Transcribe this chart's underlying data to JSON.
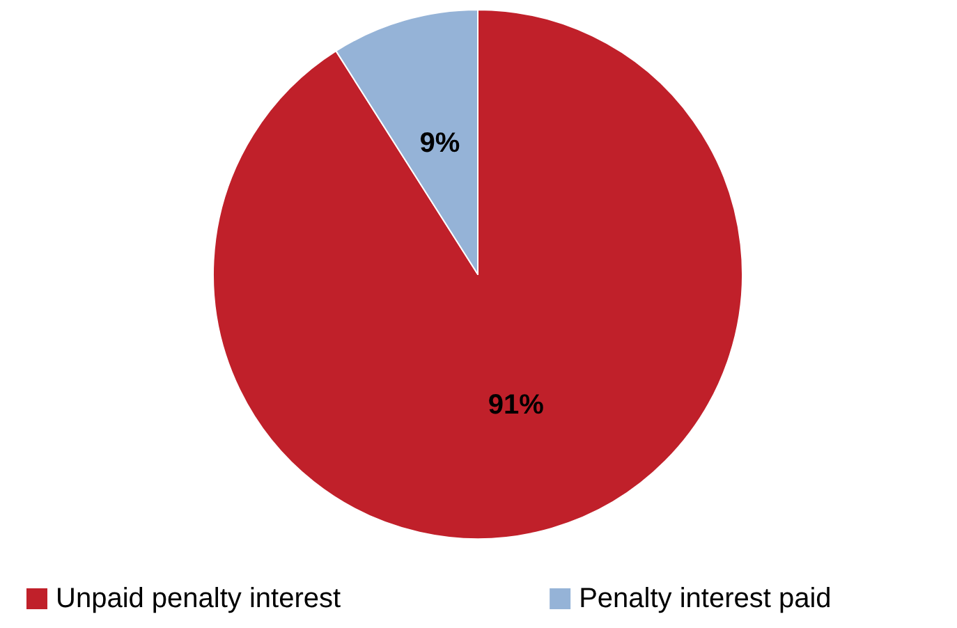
{
  "chart_data": {
    "type": "pie",
    "categories": [
      "Unpaid penalty interest",
      "Penalty interest paid"
    ],
    "values": [
      91,
      9
    ],
    "colors": [
      "#c0202a",
      "#95b3d7"
    ],
    "value_labels": [
      "91%",
      "9%"
    ],
    "legend": "bottom"
  }
}
